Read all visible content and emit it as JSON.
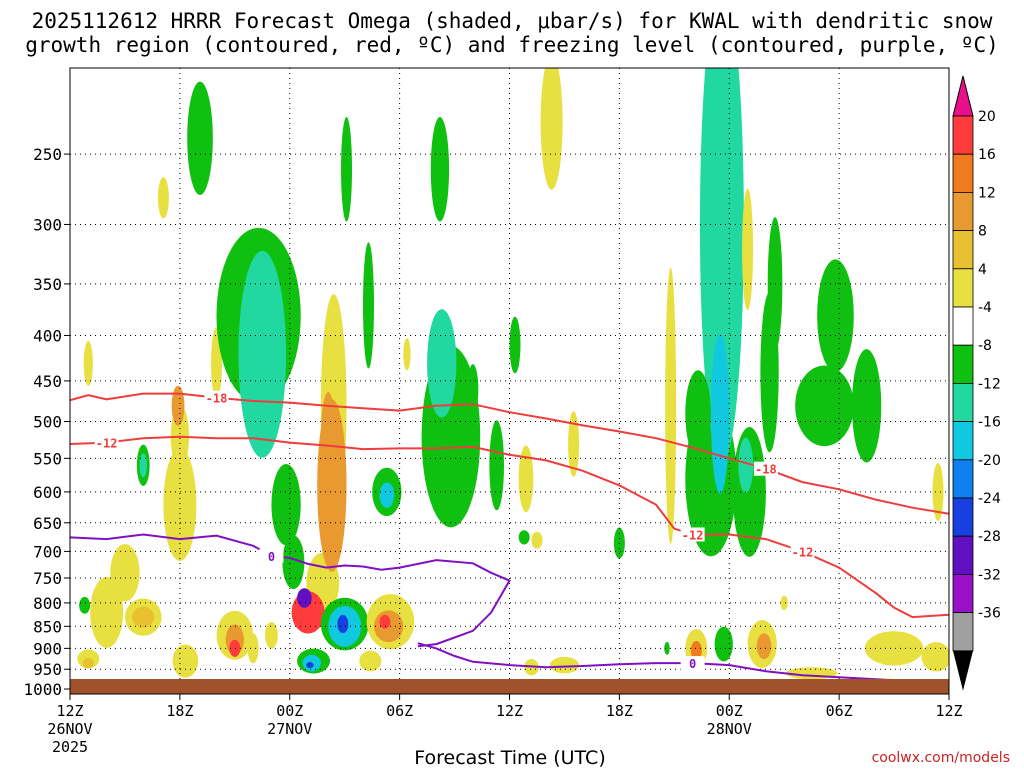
{
  "chart_data": {
    "type": "heatmap",
    "title_line1": "2025112612 HRRR Forecast Omega (shaded, μbar/s) for KWAL with dendritic snow",
    "title_line2": "growth region (contoured, red, ºC) and freezing level (contoured, purple, ºC)",
    "xlabel": "Forecast Time (UTC)",
    "credit": "coolwx.com/models",
    "x_range_hours": [
      0,
      48
    ],
    "x_ticks": [
      {
        "h": 0,
        "label": "12Z",
        "sub1": "26NOV",
        "sub2": "2025"
      },
      {
        "h": 6,
        "label": "18Z"
      },
      {
        "h": 12,
        "label": "00Z",
        "sub1": "27NOV"
      },
      {
        "h": 18,
        "label": "06Z"
      },
      {
        "h": 24,
        "label": "12Z"
      },
      {
        "h": 30,
        "label": "18Z"
      },
      {
        "h": 36,
        "label": "00Z",
        "sub1": "28NOV"
      },
      {
        "h": 42,
        "label": "06Z"
      },
      {
        "h": 48,
        "label": "12Z"
      }
    ],
    "y_ticks_hPa": [
      250,
      300,
      350,
      400,
      450,
      500,
      550,
      600,
      650,
      700,
      750,
      800,
      850,
      900,
      950,
      1000
    ],
    "y_range_hPa": [
      200,
      1013
    ],
    "colorbar": [
      {
        "label": "20",
        "color": "#ff3b3b"
      },
      {
        "label": "16",
        "color": "#f07a20"
      },
      {
        "label": "12",
        "color": "#e89a30"
      },
      {
        "label": "8",
        "color": "#e8c030"
      },
      {
        "label": "4",
        "color": "#e8e040"
      },
      {
        "label": "-4",
        "color": "#ffffff"
      },
      {
        "label": "-8",
        "color": "#10c010"
      },
      {
        "label": "-12",
        "color": "#20d8a0"
      },
      {
        "label": "-16",
        "color": "#10c8e0"
      },
      {
        "label": "-20",
        "color": "#1080f0"
      },
      {
        "label": "-24",
        "color": "#1840e0"
      },
      {
        "label": "-28",
        "color": "#6010c0"
      },
      {
        "label": "-32",
        "color": "#9a10c8"
      },
      {
        "label": "-36",
        "color": "#a0a0a0"
      }
    ],
    "cbar_top_color": "#e8108a",
    "cbar_bottom_color": "#000000",
    "ground_color": "#a0522d",
    "iso_minus18": {
      "label": "-18",
      "color": "#f03c3c",
      "points": [
        [
          0,
          473
        ],
        [
          1,
          467
        ],
        [
          2,
          472
        ],
        [
          4,
          465
        ],
        [
          6,
          465
        ],
        [
          8,
          470
        ],
        [
          10,
          474
        ],
        [
          12,
          476
        ],
        [
          14,
          480
        ],
        [
          16,
          483
        ],
        [
          18,
          486
        ],
        [
          20,
          480
        ],
        [
          22,
          478
        ],
        [
          24,
          488
        ],
        [
          26,
          496
        ],
        [
          28,
          505
        ],
        [
          30,
          513
        ],
        [
          32,
          522
        ],
        [
          34,
          535
        ],
        [
          36,
          550
        ],
        [
          38,
          565
        ],
        [
          40,
          585
        ],
        [
          42,
          596
        ],
        [
          44,
          612
        ],
        [
          46,
          625
        ],
        [
          48,
          635
        ]
      ]
    },
    "iso_minus12": {
      "label": "-12",
      "color": "#f03c3c",
      "points": [
        [
          0,
          530
        ],
        [
          2,
          528
        ],
        [
          4,
          522
        ],
        [
          6,
          520
        ],
        [
          8,
          522
        ],
        [
          10,
          522
        ],
        [
          12,
          528
        ],
        [
          14,
          532
        ],
        [
          16,
          537
        ],
        [
          18,
          536
        ],
        [
          20,
          536
        ],
        [
          22,
          534
        ],
        [
          24,
          545
        ],
        [
          26,
          553
        ],
        [
          28,
          568
        ],
        [
          30,
          590
        ],
        [
          32,
          620
        ],
        [
          33,
          660
        ],
        [
          34,
          670
        ],
        [
          36,
          670
        ],
        [
          38,
          678
        ],
        [
          40,
          700
        ],
        [
          42,
          730
        ],
        [
          44,
          780
        ],
        [
          45,
          810
        ],
        [
          46,
          830
        ],
        [
          48,
          825
        ]
      ]
    },
    "iso_zero_upper": {
      "label": "0",
      "color": "#8010c0",
      "points": [
        [
          0,
          675
        ],
        [
          2,
          678
        ],
        [
          4,
          670
        ],
        [
          6,
          678
        ],
        [
          8,
          672
        ],
        [
          10,
          690
        ],
        [
          11,
          708
        ],
        [
          12,
          712
        ],
        [
          13,
          723
        ],
        [
          14,
          730
        ],
        [
          15,
          726
        ],
        [
          16,
          728
        ],
        [
          17,
          734
        ],
        [
          18,
          730
        ],
        [
          20,
          716
        ],
        [
          22,
          722
        ],
        [
          23,
          740
        ],
        [
          24,
          755
        ],
        [
          23,
          820
        ],
        [
          22,
          860
        ],
        [
          21,
          875
        ],
        [
          20,
          890
        ],
        [
          19,
          895
        ]
      ]
    },
    "iso_zero_lower": {
      "label": "0",
      "color": "#8010c0",
      "points": [
        [
          19,
          888
        ],
        [
          20,
          900
        ],
        [
          21,
          918
        ],
        [
          22,
          932
        ],
        [
          24,
          940
        ],
        [
          26,
          945
        ],
        [
          28,
          942
        ],
        [
          30,
          938
        ],
        [
          32,
          935
        ],
        [
          34,
          935
        ],
        [
          36,
          940
        ],
        [
          38,
          955
        ],
        [
          40,
          965
        ],
        [
          42,
          970
        ],
        [
          44,
          975
        ],
        [
          46,
          980
        ],
        [
          48,
          985
        ]
      ]
    },
    "shaded_regions": [
      {
        "h": 6.0,
        "p": 520,
        "dh": 0.5,
        "dp": 85,
        "level": "4"
      },
      {
        "h": 6.0,
        "p": 620,
        "dh": 0.9,
        "dp": 180,
        "level": "4"
      },
      {
        "h": 5.9,
        "p": 480,
        "dh": 0.35,
        "dp": 50,
        "level": "12"
      },
      {
        "h": 5.1,
        "p": 280,
        "dh": 0.3,
        "dp": 30,
        "level": "4"
      },
      {
        "h": 4.0,
        "p": 560,
        "dh": 0.35,
        "dp": 60,
        "level": "-8"
      },
      {
        "h": 4.0,
        "p": 560,
        "dh": 0.2,
        "dp": 35,
        "level": "-12"
      },
      {
        "h": 1.0,
        "p": 430,
        "dh": 0.25,
        "dp": 50,
        "level": "4"
      },
      {
        "h": 3.0,
        "p": 740,
        "dh": 0.8,
        "dp": 110,
        "level": "4"
      },
      {
        "h": 2.0,
        "p": 820,
        "dh": 0.9,
        "dp": 150,
        "level": "4"
      },
      {
        "h": 4.0,
        "p": 830,
        "dh": 1.0,
        "dp": 80,
        "level": "4"
      },
      {
        "h": 4.0,
        "p": 830,
        "dh": 0.6,
        "dp": 45,
        "level": "8"
      },
      {
        "h": 1.0,
        "p": 925,
        "dh": 0.6,
        "dp": 45,
        "level": "4"
      },
      {
        "h": 1.0,
        "p": 935,
        "dh": 0.3,
        "dp": 25,
        "level": "8"
      },
      {
        "h": 0.8,
        "p": 805,
        "dh": 0.3,
        "dp": 35,
        "level": "-8"
      },
      {
        "h": 8.0,
        "p": 430,
        "dh": 0.3,
        "dp": 80,
        "level": "4"
      },
      {
        "h": 9.0,
        "p": 870,
        "dh": 1.0,
        "dp": 110,
        "level": "4"
      },
      {
        "h": 9.0,
        "p": 880,
        "dh": 0.5,
        "dp": 70,
        "level": "12"
      },
      {
        "h": 9.0,
        "p": 900,
        "dh": 0.3,
        "dp": 40,
        "level": "20"
      },
      {
        "h": 10.0,
        "p": 900,
        "dh": 0.3,
        "dp": 70,
        "level": "4"
      },
      {
        "h": 11.0,
        "p": 870,
        "dh": 0.35,
        "dp": 60,
        "level": "4"
      },
      {
        "h": 6.3,
        "p": 930,
        "dh": 0.7,
        "dp": 80,
        "level": "4"
      },
      {
        "h": 7.1,
        "p": 240,
        "dh": 0.7,
        "dp": 70,
        "level": "-8"
      },
      {
        "h": 10.3,
        "p": 380,
        "dh": 2.3,
        "dp": 170,
        "level": "-8"
      },
      {
        "h": 10.5,
        "p": 420,
        "dh": 1.3,
        "dp": 220,
        "level": "-12"
      },
      {
        "h": 11.8,
        "p": 620,
        "dh": 0.8,
        "dp": 130,
        "level": "-8"
      },
      {
        "h": 14.4,
        "p": 480,
        "dh": 0.7,
        "dp": 270,
        "level": "4"
      },
      {
        "h": 13.8,
        "p": 760,
        "dh": 0.9,
        "dp": 120,
        "level": "4"
      },
      {
        "h": 14.3,
        "p": 590,
        "dh": 0.8,
        "dp": 260,
        "level": "12"
      },
      {
        "h": 14.1,
        "p": 520,
        "dh": 0.4,
        "dp": 120,
        "level": "12"
      },
      {
        "h": 12.2,
        "p": 720,
        "dh": 0.6,
        "dp": 100,
        "level": "-8"
      },
      {
        "h": 13.0,
        "p": 820,
        "dh": 0.9,
        "dp": 90,
        "level": "20"
      },
      {
        "h": 12.8,
        "p": 790,
        "dh": 0.4,
        "dp": 40,
        "level": "-28"
      },
      {
        "h": 15.0,
        "p": 845,
        "dh": 1.3,
        "dp": 115,
        "level": "-8"
      },
      {
        "h": 15.0,
        "p": 850,
        "dh": 0.9,
        "dp": 90,
        "level": "-16"
      },
      {
        "h": 14.9,
        "p": 845,
        "dh": 0.3,
        "dp": 40,
        "level": "-24"
      },
      {
        "h": 13.3,
        "p": 930,
        "dh": 0.9,
        "dp": 60,
        "level": "-8"
      },
      {
        "h": 13.2,
        "p": 935,
        "dh": 0.5,
        "dp": 40,
        "level": "-16"
      },
      {
        "h": 13.1,
        "p": 940,
        "dh": 0.2,
        "dp": 15,
        "level": "-24"
      },
      {
        "h": 15.1,
        "p": 260,
        "dh": 0.3,
        "dp": 70,
        "level": "-8"
      },
      {
        "h": 16.3,
        "p": 370,
        "dh": 0.3,
        "dp": 120,
        "level": "-8"
      },
      {
        "h": 17.5,
        "p": 840,
        "dh": 1.3,
        "dp": 120,
        "level": "4"
      },
      {
        "h": 17.4,
        "p": 850,
        "dh": 0.8,
        "dp": 70,
        "level": "12"
      },
      {
        "h": 17.2,
        "p": 840,
        "dh": 0.3,
        "dp": 30,
        "level": "20"
      },
      {
        "h": 16.4,
        "p": 930,
        "dh": 0.6,
        "dp": 50,
        "level": "4"
      },
      {
        "h": 17.3,
        "p": 600,
        "dh": 0.8,
        "dp": 75,
        "level": "-8"
      },
      {
        "h": 17.3,
        "p": 605,
        "dh": 0.4,
        "dp": 40,
        "level": "-16"
      },
      {
        "h": 18.4,
        "p": 420,
        "dh": 0.2,
        "dp": 35,
        "level": "4"
      },
      {
        "h": 20.8,
        "p": 520,
        "dh": 1.6,
        "dp": 240,
        "level": "-8"
      },
      {
        "h": 20.3,
        "p": 430,
        "dh": 0.8,
        "dp": 120,
        "level": "-12"
      },
      {
        "h": 20.2,
        "p": 260,
        "dh": 0.5,
        "dp": 70,
        "level": "-8"
      },
      {
        "h": 22.0,
        "p": 460,
        "dh": 0.3,
        "dp": 60,
        "level": "-8"
      },
      {
        "h": 23.3,
        "p": 560,
        "dh": 0.4,
        "dp": 130,
        "level": "-8"
      },
      {
        "h": 24.9,
        "p": 580,
        "dh": 0.4,
        "dp": 100,
        "level": "4"
      },
      {
        "h": 26.3,
        "p": 230,
        "dh": 0.6,
        "dp": 80,
        "level": "4"
      },
      {
        "h": 25.5,
        "p": 680,
        "dh": 0.3,
        "dp": 30,
        "level": "4"
      },
      {
        "h": 27.5,
        "p": 530,
        "dh": 0.3,
        "dp": 90,
        "level": "4"
      },
      {
        "h": 25.2,
        "p": 945,
        "dh": 0.4,
        "dp": 40,
        "level": "4"
      },
      {
        "h": 27.0,
        "p": 940,
        "dh": 0.8,
        "dp": 40,
        "level": "4"
      },
      {
        "h": 24.3,
        "p": 410,
        "dh": 0.3,
        "dp": 60,
        "level": "-8"
      },
      {
        "h": 24.8,
        "p": 675,
        "dh": 0.3,
        "dp": 25,
        "level": "-8"
      },
      {
        "h": 30.0,
        "p": 685,
        "dh": 0.3,
        "dp": 55,
        "level": "-8"
      },
      {
        "h": 32.8,
        "p": 480,
        "dh": 0.3,
        "dp": 330,
        "level": "4"
      },
      {
        "h": 35.0,
        "p": 580,
        "dh": 1.4,
        "dp": 230,
        "level": "-8"
      },
      {
        "h": 35.6,
        "p": 300,
        "dh": 1.2,
        "dp": 330,
        "level": "-12"
      },
      {
        "h": 35.5,
        "p": 490,
        "dh": 0.5,
        "dp": 200,
        "level": "-16"
      },
      {
        "h": 34.3,
        "p": 490,
        "dh": 0.7,
        "dp": 110,
        "level": "-8"
      },
      {
        "h": 37.1,
        "p": 600,
        "dh": 0.9,
        "dp": 200,
        "level": "-8"
      },
      {
        "h": 36.9,
        "p": 560,
        "dh": 0.4,
        "dp": 80,
        "level": "-12"
      },
      {
        "h": 38.2,
        "p": 440,
        "dh": 0.5,
        "dp": 180,
        "level": "-8"
      },
      {
        "h": 38.5,
        "p": 350,
        "dh": 0.4,
        "dp": 120,
        "level": "-8"
      },
      {
        "h": 41.2,
        "p": 480,
        "dh": 1.6,
        "dp": 100,
        "level": "-8"
      },
      {
        "h": 41.8,
        "p": 380,
        "dh": 1.0,
        "dp": 110,
        "level": "-8"
      },
      {
        "h": 43.5,
        "p": 480,
        "dh": 0.8,
        "dp": 140,
        "level": "-8"
      },
      {
        "h": 34.2,
        "p": 900,
        "dh": 0.6,
        "dp": 90,
        "level": "4"
      },
      {
        "h": 34.2,
        "p": 905,
        "dh": 0.3,
        "dp": 45,
        "level": "16"
      },
      {
        "h": 37.8,
        "p": 890,
        "dh": 0.8,
        "dp": 110,
        "level": "4"
      },
      {
        "h": 37.9,
        "p": 895,
        "dh": 0.4,
        "dp": 60,
        "level": "12"
      },
      {
        "h": 35.7,
        "p": 890,
        "dh": 0.5,
        "dp": 80,
        "level": "-8"
      },
      {
        "h": 39.0,
        "p": 800,
        "dh": 0.2,
        "dp": 30,
        "level": "4"
      },
      {
        "h": 40.5,
        "p": 960,
        "dh": 1.4,
        "dp": 30,
        "level": "4"
      },
      {
        "h": 45.0,
        "p": 900,
        "dh": 1.6,
        "dp": 80,
        "level": "4"
      },
      {
        "h": 47.3,
        "p": 920,
        "dh": 0.8,
        "dp": 70,
        "level": "4"
      },
      {
        "h": 47.4,
        "p": 600,
        "dh": 0.3,
        "dp": 90,
        "level": "4"
      },
      {
        "h": 32.6,
        "p": 900,
        "dh": 0.15,
        "dp": 30,
        "level": "-8"
      },
      {
        "h": 37.0,
        "p": 320,
        "dh": 0.3,
        "dp": 100,
        "level": "4"
      }
    ]
  }
}
